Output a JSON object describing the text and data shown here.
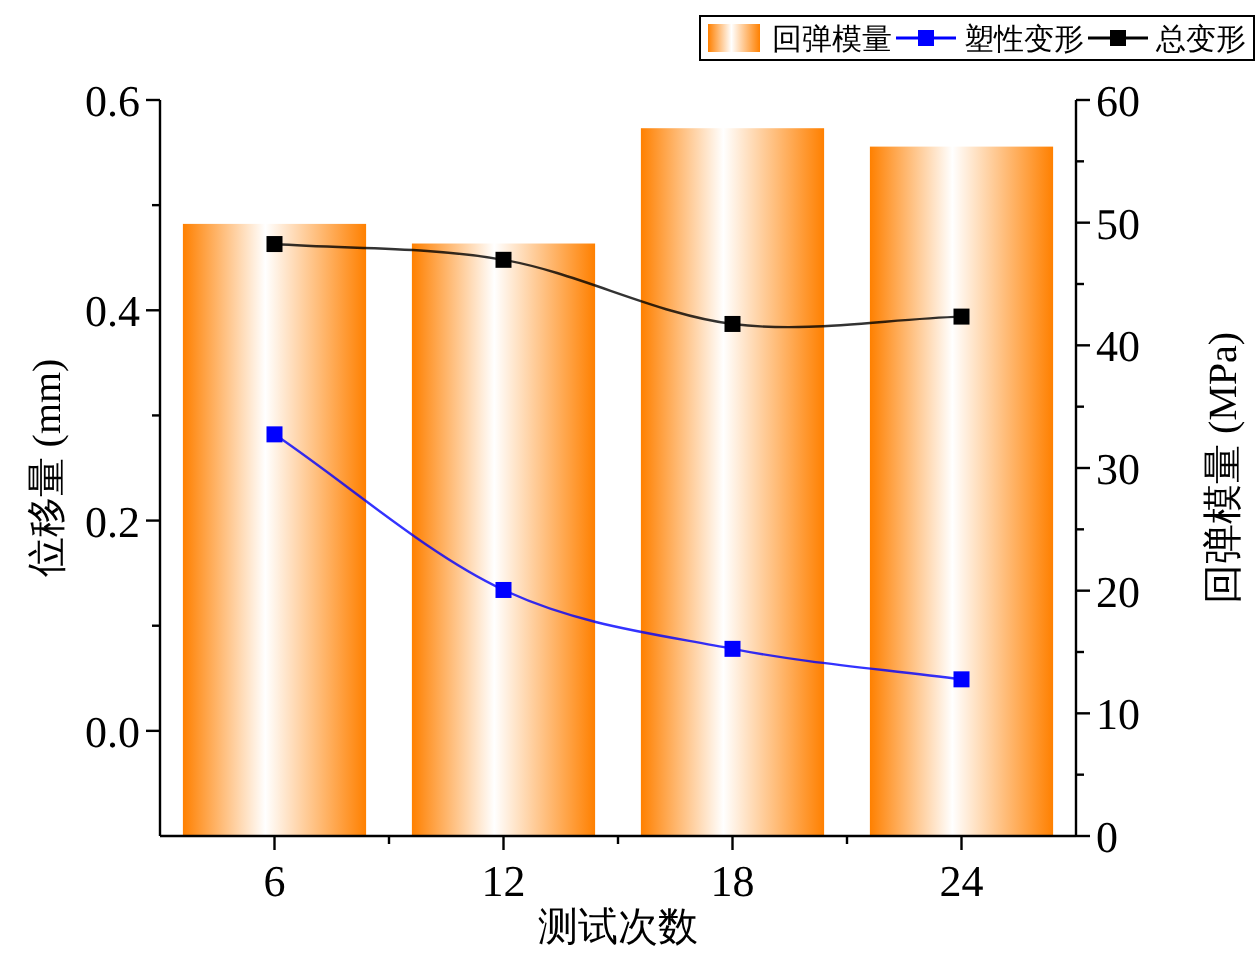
{
  "chart_data": {
    "type": "bar",
    "xlabel": "测试次数",
    "ylabel": "位移量 (mm)",
    "y2label": "回弹模量 (MPa)",
    "x": [
      6,
      12,
      18,
      24
    ],
    "xlim": [
      3,
      27
    ],
    "xticks": [
      6,
      {
        "value": 9,
        "label": null
      },
      12,
      {
        "value": 15,
        "label": null
      },
      18,
      {
        "value": 21,
        "label": null
      },
      24
    ],
    "ylim": [
      -0.1,
      0.6
    ],
    "yticks": [
      {
        "value": 0,
        "label": "0.0"
      },
      {
        "value": 0.1,
        "label": null
      },
      {
        "value": 0.2,
        "label": "0.2"
      },
      {
        "value": 0.3,
        "label": null
      },
      {
        "value": 0.4,
        "label": "0.4"
      },
      {
        "value": 0.5,
        "label": null
      },
      {
        "value": 0.6,
        "label": "0.6"
      }
    ],
    "y2lim": [
      0,
      60
    ],
    "y2ticks": [
      0,
      {
        "value": 5,
        "label": null
      },
      10,
      {
        "value": 15,
        "label": null
      },
      20,
      {
        "value": 25,
        "label": null
      },
      30,
      {
        "value": 35,
        "label": null
      },
      40,
      {
        "value": 45,
        "label": null
      },
      50,
      {
        "value": 55,
        "label": null
      },
      60
    ],
    "legend": "top right",
    "marker": "square",
    "series": [
      {
        "name": "回弹模量",
        "axis": "y2",
        "color": "#ff8000",
        "values": [
          49.9,
          48.3,
          57.7,
          56.2
        ]
      },
      {
        "name": "塑性变形",
        "type": "line",
        "color": "#0000ff",
        "values": [
          0.282,
          0.134,
          0.078,
          0.049
        ]
      },
      {
        "name": "总变形",
        "type": "line",
        "color": "#000000",
        "values": [
          0.463,
          0.448,
          0.387,
          0.394
        ]
      }
    ]
  }
}
